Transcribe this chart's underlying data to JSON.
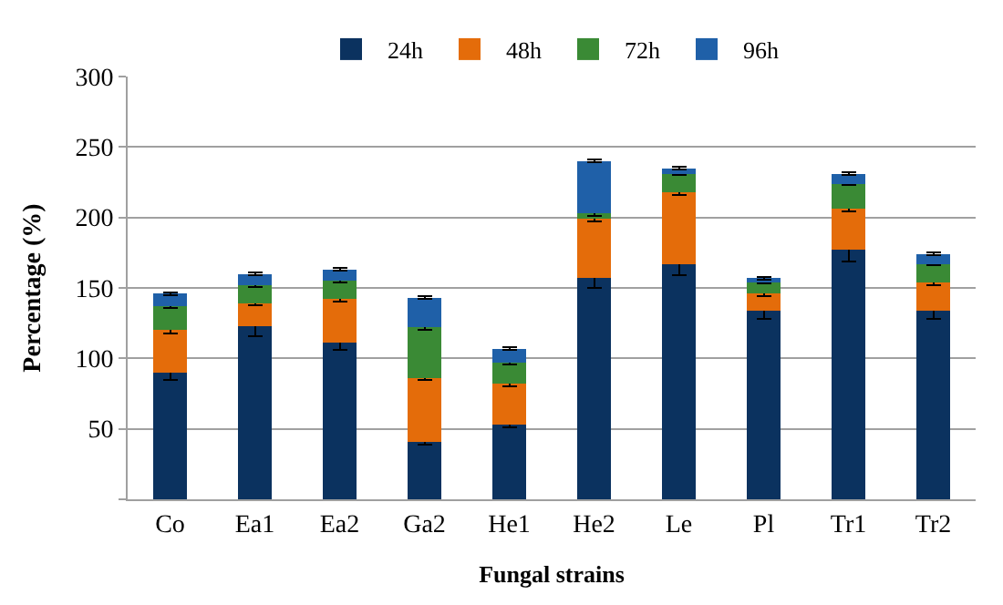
{
  "chart_data": {
    "type": "bar",
    "stacked": true,
    "xlabel": "Fungal strains",
    "ylabel": "Percentage (%)",
    "categories": [
      "Co",
      "Ea1",
      "Ea2",
      "Ga2",
      "He1",
      "He2",
      "Le",
      "Pl",
      "Tr1",
      "Tr2"
    ],
    "series": [
      {
        "name": "24h",
        "color": "#0b325f",
        "values": [
          90,
          123,
          111,
          41,
          53,
          157,
          167,
          134,
          177,
          134
        ],
        "errors": [
          5,
          7,
          5,
          2,
          2,
          7,
          8,
          6,
          8,
          6
        ]
      },
      {
        "name": "48h",
        "color": "#e46c0a",
        "values": [
          30,
          16,
          31,
          45,
          29,
          42,
          51,
          12,
          29,
          20
        ],
        "errors": [
          2,
          1.5,
          2,
          1.5,
          2,
          2,
          2,
          2,
          2,
          2
        ]
      },
      {
        "name": "72h",
        "color": "#3a8a35",
        "values": [
          17,
          13,
          13,
          36,
          15,
          4,
          13,
          8,
          18,
          13
        ],
        "errors": [
          1,
          1.5,
          1,
          1.5,
          1,
          2,
          1,
          1,
          1,
          1
        ]
      },
      {
        "name": "96h",
        "color": "#1f60a8",
        "values": [
          9,
          8,
          8,
          21,
          10,
          37,
          4,
          3,
          7,
          7
        ],
        "errors": [
          1,
          1,
          1,
          1,
          1,
          1,
          1,
          1,
          1,
          1
        ]
      }
    ],
    "ylim": [
      0,
      300
    ],
    "yticks": [
      {
        "value": 0,
        "label": null
      },
      50,
      100,
      150,
      200,
      250,
      300
    ],
    "grid": "y",
    "legend": "top"
  }
}
